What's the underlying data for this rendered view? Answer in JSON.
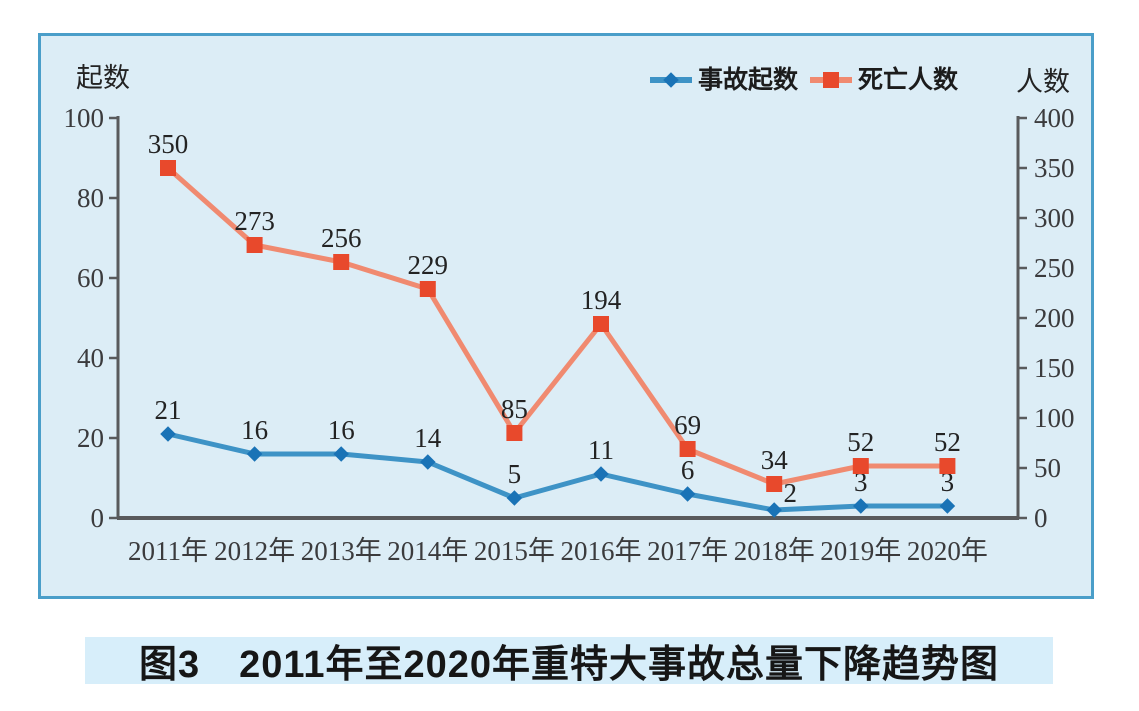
{
  "caption": {
    "text": "图3　2011年至2020年重特大事故总量下降趋势图"
  },
  "chart_data": {
    "type": "line",
    "categories": [
      "2011年",
      "2012年",
      "2013年",
      "2014年",
      "2015年",
      "2016年",
      "2017年",
      "2018年",
      "2019年",
      "2020年"
    ],
    "series": [
      {
        "name": "事故起数",
        "axis": "left",
        "marker": "diamond",
        "line_color": "#3e93c6",
        "marker_color": "#1a73b6",
        "values": [
          21,
          16,
          16,
          14,
          5,
          11,
          6,
          2,
          3,
          3
        ]
      },
      {
        "name": "死亡人数",
        "axis": "right",
        "marker": "square",
        "line_color": "#f08a70",
        "marker_color": "#e8492c",
        "values": [
          350,
          273,
          256,
          229,
          85,
          194,
          69,
          34,
          52,
          52
        ]
      }
    ],
    "left_axis": {
      "label": "起数",
      "min": 0,
      "max": 100,
      "step": 20,
      "ticks": [
        0,
        20,
        40,
        60,
        80,
        100
      ]
    },
    "right_axis": {
      "label": "人数",
      "min": 0,
      "max": 400,
      "step": 50,
      "ticks": [
        0,
        50,
        100,
        150,
        200,
        250,
        300,
        350,
        400
      ]
    },
    "legend": {
      "items": [
        "事故起数",
        "死亡人数"
      ],
      "position": "top"
    },
    "grid": false,
    "colors": {
      "panel_background": "#dcedf6",
      "panel_border": "#4a9ec9",
      "caption_background": "#d7eefa",
      "axis": "#595a5c",
      "tick_text": "#3b3b3d",
      "data_label_text": "#232323",
      "legend_text": "#1c1c1c"
    }
  }
}
